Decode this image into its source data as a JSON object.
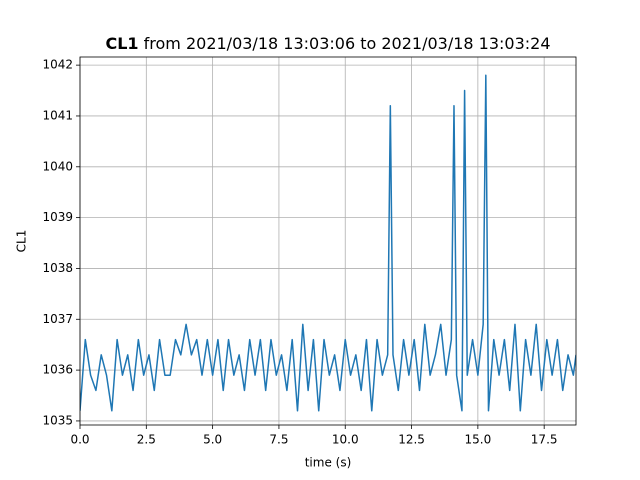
{
  "chart_data": {
    "type": "line",
    "title_bold": "CL1",
    "title": "from 2021/03/18 13:03:06 to 2021/03/18 13:03:24",
    "xlabel": "time (s)",
    "ylabel": "CL1",
    "x": [
      0,
      0.2,
      0.4,
      0.6,
      0.8,
      1.0,
      1.2,
      1.4,
      1.6,
      1.8,
      2.0,
      2.2,
      2.4,
      2.6,
      2.8,
      3.0,
      3.2,
      3.4,
      3.6,
      3.8,
      4.0,
      4.2,
      4.4,
      4.6,
      4.8,
      5.0,
      5.2,
      5.4,
      5.6,
      5.8,
      6.0,
      6.2,
      6.4,
      6.6,
      6.8,
      7.0,
      7.2,
      7.4,
      7.6,
      7.8,
      8.0,
      8.2,
      8.4,
      8.6,
      8.8,
      9.0,
      9.2,
      9.4,
      9.6,
      9.8,
      10.0,
      10.2,
      10.4,
      10.6,
      10.8,
      11.0,
      11.2,
      11.4,
      11.6,
      11.7,
      11.8,
      12.0,
      12.2,
      12.4,
      12.6,
      12.8,
      13.0,
      13.2,
      13.4,
      13.6,
      13.8,
      14.0,
      14.1,
      14.2,
      14.4,
      14.5,
      14.6,
      14.8,
      15.0,
      15.2,
      15.3,
      15.4,
      15.6,
      15.8,
      16.0,
      16.2,
      16.4,
      16.6,
      16.8,
      17.0,
      17.2,
      17.4,
      17.6,
      17.8,
      18.0,
      18.2,
      18.4,
      18.6,
      18.7
    ],
    "series": [
      {
        "color": "#1f77b4",
        "values": [
          1035.2,
          1036.6,
          1035.9,
          1035.6,
          1036.3,
          1035.9,
          1035.2,
          1036.6,
          1035.9,
          1036.3,
          1035.6,
          1036.6,
          1035.9,
          1036.3,
          1035.6,
          1036.6,
          1035.9,
          1035.9,
          1036.6,
          1036.3,
          1036.9,
          1036.3,
          1036.6,
          1035.9,
          1036.6,
          1035.9,
          1036.6,
          1035.6,
          1036.6,
          1035.9,
          1036.3,
          1035.6,
          1036.6,
          1035.9,
          1036.6,
          1035.6,
          1036.6,
          1035.9,
          1036.3,
          1035.6,
          1036.6,
          1035.2,
          1036.9,
          1035.6,
          1036.6,
          1035.2,
          1036.6,
          1035.9,
          1036.3,
          1035.6,
          1036.6,
          1035.9,
          1036.3,
          1035.6,
          1036.6,
          1035.2,
          1036.6,
          1035.9,
          1036.3,
          1041.2,
          1036.3,
          1035.6,
          1036.6,
          1035.9,
          1036.6,
          1035.6,
          1036.9,
          1035.9,
          1036.3,
          1036.9,
          1035.9,
          1036.6,
          1041.2,
          1035.9,
          1035.2,
          1041.5,
          1035.9,
          1036.6,
          1035.9,
          1036.9,
          1041.8,
          1035.2,
          1036.6,
          1035.9,
          1036.6,
          1035.6,
          1036.9,
          1035.2,
          1036.6,
          1035.9,
          1036.9,
          1035.6,
          1036.6,
          1035.9,
          1036.6,
          1035.6,
          1036.3,
          1035.9,
          1036.3
        ]
      }
    ],
    "xlim": [
      0,
      18.7
    ],
    "xticks": [
      {
        "value": 0,
        "label": "0.0"
      },
      2.5,
      {
        "value": 5,
        "label": "5.0"
      },
      7.5,
      {
        "value": 10,
        "label": "10.0"
      },
      12.5,
      {
        "value": 15,
        "label": "15.0"
      },
      17.5
    ],
    "ylim": [
      1034.92,
      1042.16
    ],
    "yticks": [
      1035,
      1036,
      1037,
      1038,
      1039,
      1040,
      1041,
      1042
    ],
    "grid": true
  }
}
